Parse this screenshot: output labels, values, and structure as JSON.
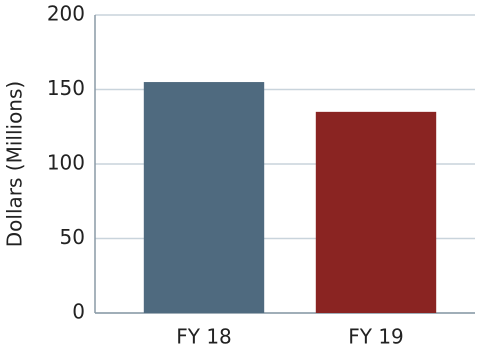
{
  "chart_data": {
    "type": "bar",
    "y_label": "Dollars (Millions)",
    "categories": [
      "FY 18",
      "FY 19"
    ],
    "values": [
      155,
      135
    ],
    "colors": [
      "#4f6a7f",
      "#8a2422"
    ],
    "ylim": [
      0,
      200
    ],
    "yticks": [
      0,
      50,
      100,
      150,
      200
    ],
    "grid": true
  }
}
